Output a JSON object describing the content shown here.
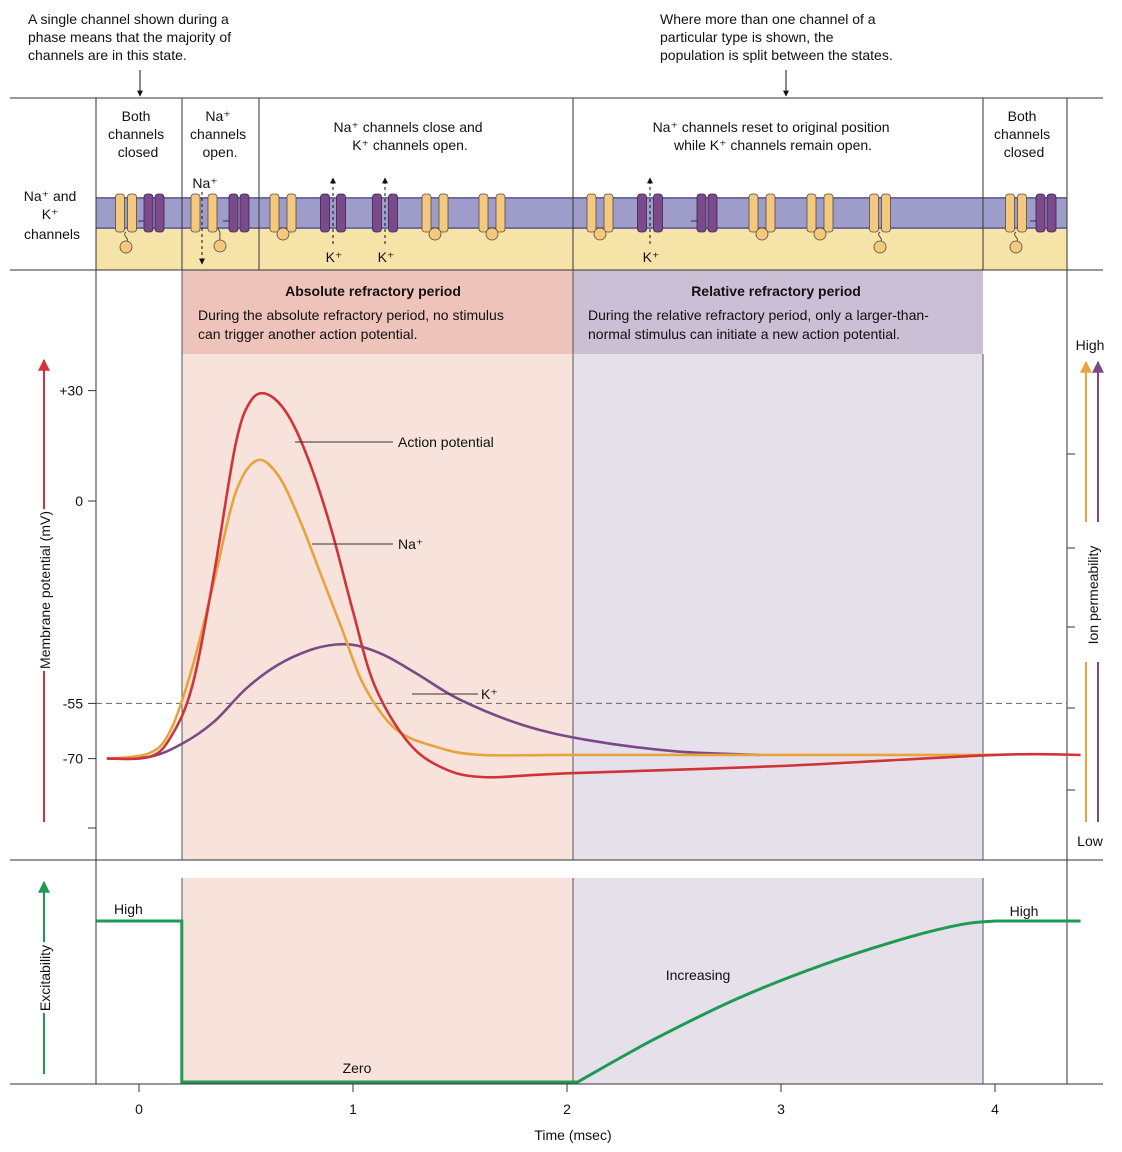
{
  "notes": {
    "left": [
      "A single channel shown during a",
      "phase means that the majority of",
      "channels are in this state."
    ],
    "right": [
      "Where more than one channel of a",
      "particular type is shown, the",
      "population is split between the states."
    ]
  },
  "phases": {
    "p1": [
      "Both",
      "channels",
      "closed"
    ],
    "p2": [
      "Na⁺",
      "channels",
      "open."
    ],
    "p3": [
      "Na⁺ channels close and",
      "K⁺ channels open."
    ],
    "p4": [
      "Na⁺ channels reset to original position",
      "while K⁺ channels remain open."
    ],
    "p5": [
      "Both",
      "channels",
      "closed"
    ]
  },
  "row_label": [
    "Na⁺ and",
    "K⁺",
    "channels"
  ],
  "ion_labels": {
    "na_in": "Na⁺",
    "k_out": "K⁺"
  },
  "periods": {
    "absolute": {
      "title": "Absolute refractory period",
      "text": [
        "During the absolute refractory period, no stimulus",
        "can trigger another action potential."
      ]
    },
    "relative": {
      "title": "Relative refractory period",
      "text": [
        "During the relative refractory period, only a larger-than-",
        "normal stimulus can initiate a new action potential."
      ]
    }
  },
  "colors": {
    "action_potential": "#d0343a",
    "na_permeability": "#e8a33d",
    "k_permeability": "#7b4a86",
    "excitability": "#1f9a54",
    "absolute_header": "#eec3b9",
    "absolute_body": "#f8e2dc",
    "relative_header": "#cbbfd6",
    "relative_body": "#e5e0e9",
    "membrane_lipid": "#9e9cc8",
    "cytoplasm": "#f5e3a8",
    "na_channel": "#f2c97e",
    "k_channel": "#7a4a8c"
  },
  "chart_data": [
    {
      "type": "line",
      "ylabel": "Membrane potential (mV)",
      "y2label": "Ion permeability",
      "y2_ticks": [
        "High",
        "Low"
      ],
      "y_ticks": [
        "+30",
        "0",
        "-55",
        "-70"
      ],
      "threshold": -55,
      "xlim": [
        -0.2,
        4.4
      ],
      "ylim": [
        -79,
        37
      ],
      "series": [
        {
          "name": "Action potential",
          "x": [
            -0.15,
            0.05,
            0.15,
            0.25,
            0.35,
            0.45,
            0.52,
            0.6,
            0.7,
            0.8,
            0.9,
            1.0,
            1.1,
            1.25,
            1.4,
            1.6,
            2.0,
            3.0,
            4.0,
            4.4
          ],
          "y": [
            -70,
            -69.5,
            -64,
            -50,
            -20,
            15,
            27,
            29,
            23,
            10,
            -8,
            -30,
            -50,
            -65,
            -72,
            -75,
            -74,
            -72,
            -69,
            -69
          ]
        },
        {
          "name": "Na⁺",
          "x": [
            -0.15,
            0.05,
            0.15,
            0.25,
            0.35,
            0.45,
            0.55,
            0.65,
            0.75,
            0.85,
            0.95,
            1.05,
            1.2,
            1.4,
            1.6,
            2.0,
            3.0,
            4.0
          ],
          "y": [
            -70,
            -68.5,
            -62,
            -45,
            -22,
            2,
            11,
            7,
            -5,
            -20,
            -35,
            -50,
            -62,
            -67,
            -69,
            -69,
            -69,
            -69
          ]
        },
        {
          "name": "K⁺",
          "x": [
            -0.15,
            0.05,
            0.2,
            0.35,
            0.5,
            0.65,
            0.8,
            0.92,
            1.02,
            1.15,
            1.3,
            1.5,
            1.8,
            2.1,
            2.5,
            2.9
          ],
          "y": [
            -70,
            -69.5,
            -66,
            -60,
            -51,
            -44.5,
            -40.5,
            -39,
            -39.3,
            -42,
            -47,
            -54,
            -61,
            -65,
            -68,
            -69
          ]
        }
      ]
    },
    {
      "type": "line",
      "ylabel": "Excitability",
      "xlabel": "Time (msec)",
      "x_ticks": [
        "0",
        "1",
        "2",
        "3",
        "4"
      ],
      "labels": {
        "high_left": "High",
        "zero": "Zero",
        "increasing": "Increasing",
        "high_right": "High"
      },
      "series": [
        {
          "name": "Excitability",
          "x": [
            -0.2,
            0.2,
            0.2,
            2.05,
            2.4,
            2.8,
            3.2,
            3.6,
            3.85,
            4.0,
            4.4
          ],
          "y": [
            1,
            1,
            0,
            0,
            0.26,
            0.52,
            0.73,
            0.9,
            0.98,
            1,
            1
          ]
        }
      ]
    }
  ]
}
